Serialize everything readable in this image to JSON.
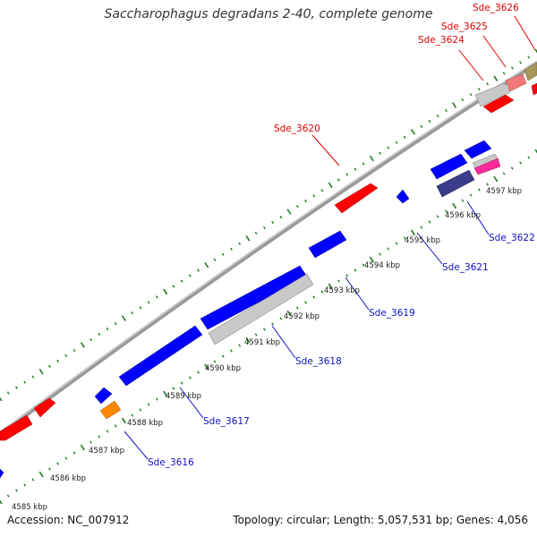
{
  "title": "Saccharophagus degradans 2-40, complete genome",
  "footer": {
    "accession": "Accession: NC_007912",
    "summary": "Topology: circular; Length: 5,057,531 bp; Genes: 4,056"
  },
  "colors": {
    "forward_red": "#ff0000",
    "reverse_blue": "#0000ff",
    "gray_gene": "#c8c8c8",
    "backbone": "#8a8a8a",
    "tick_green": "#1f7a1f",
    "label_red": "#e00000",
    "label_blue": "#1010c0"
  },
  "kbp_ticks": [
    "4585 kbp",
    "4586 kbp",
    "4587 kbp",
    "4588 kbp",
    "4589 kbp",
    "4590 kbp",
    "4591 kbp",
    "4592 kbp",
    "4593 kbp",
    "4594 kbp",
    "4595 kbp",
    "4596 kbp",
    "4597 kbp"
  ],
  "gene_labels": {
    "forward": [
      "Sde_3620",
      "Sde_3624",
      "Sde_3625",
      "Sde_3626"
    ],
    "reverse": [
      "Sde_3616",
      "Sde_3617",
      "Sde_3618",
      "Sde_3619",
      "Sde_3621",
      "Sde_3622"
    ]
  }
}
